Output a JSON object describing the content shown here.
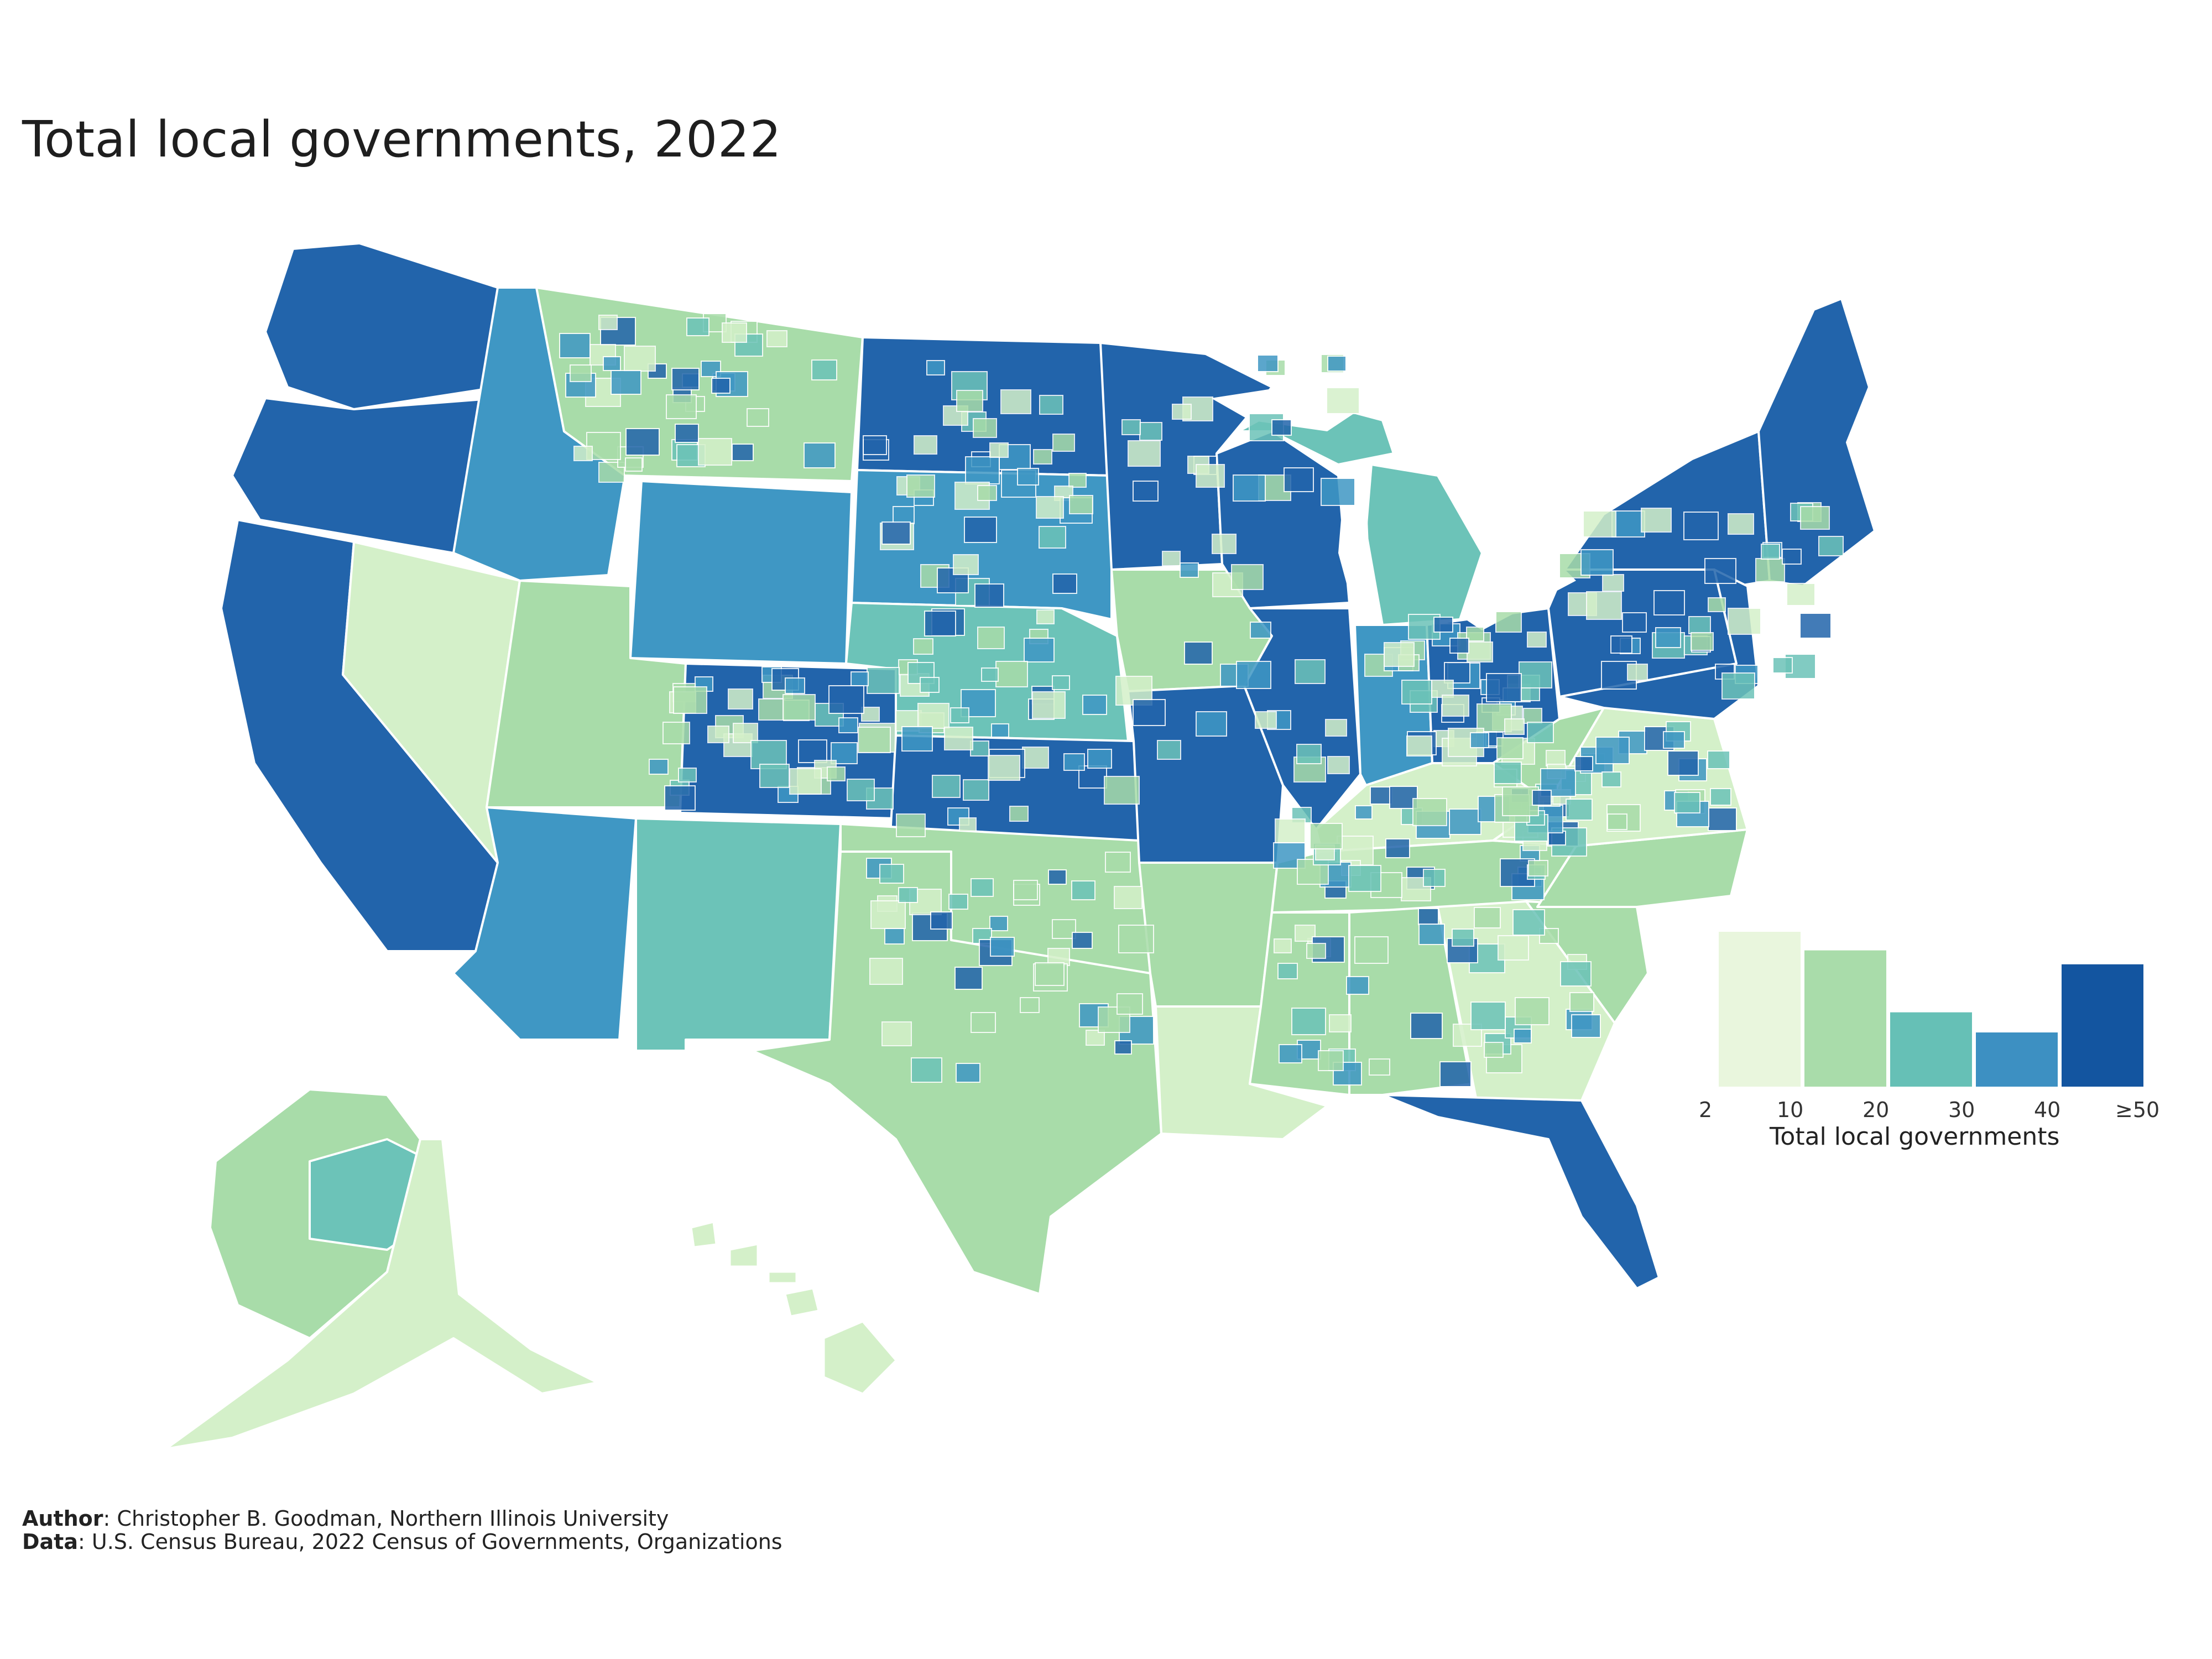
{
  "title": "Total local governments, 2022",
  "legend": {
    "title": "Total local governments",
    "ticks": [
      "2",
      "10",
      "20",
      "30",
      "40",
      "≥50"
    ],
    "bins": [
      {
        "color": "#e9f6dd",
        "height": 1.0
      },
      {
        "color": "#a9dcaa",
        "height": 0.88
      },
      {
        "color": "#66c0b6",
        "height": 0.48
      },
      {
        "color": "#3d90c2",
        "height": 0.35
      },
      {
        "color": "#1355a0",
        "height": 0.79
      }
    ]
  },
  "palette": {
    "c1": "#d4f0c9",
    "c2": "#a8dca9",
    "c3": "#6cc3b8",
    "c4": "#3f97c4",
    "c5": "#2264ab"
  },
  "credits": {
    "author_label": "Author",
    "author_text": ": Christopher B. Goodman, Northern Illinois University",
    "data_label": "Data",
    "data_text": ": U.S. Census Bureau, 2022 Census of Governments, Organizations"
  }
}
